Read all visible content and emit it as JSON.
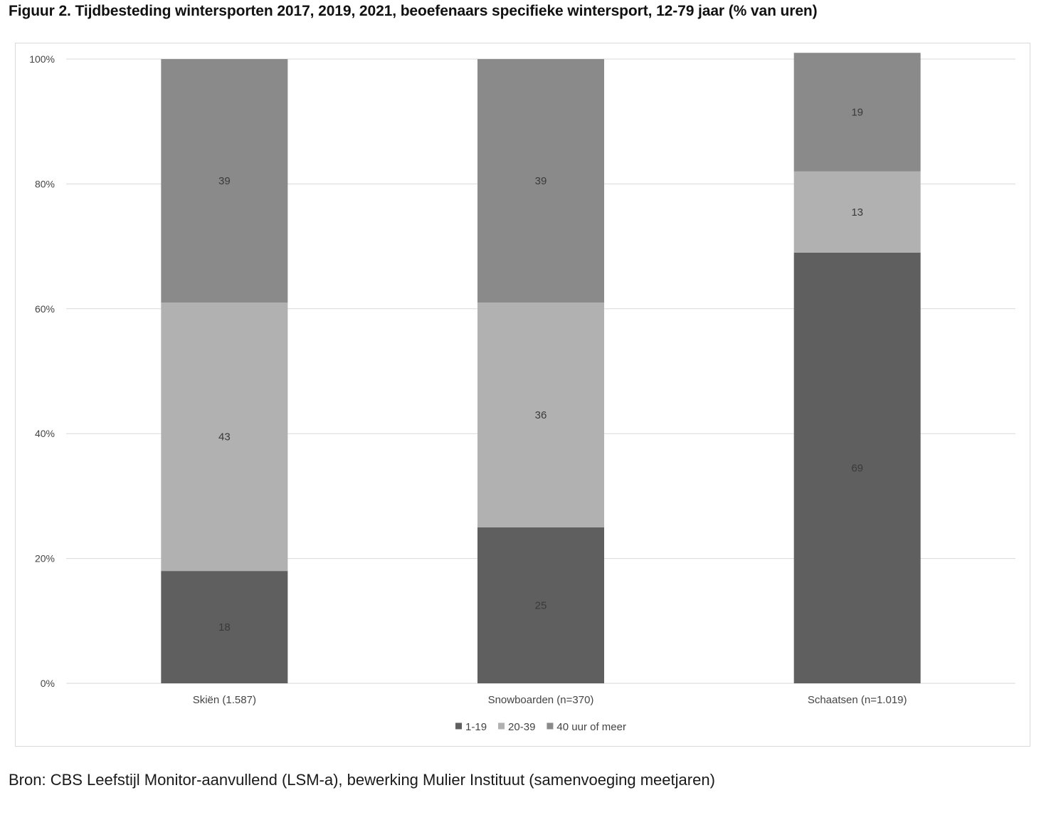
{
  "title": "Figuur 2. Tijdbesteding wintersporten 2017, 2019, 2021, beoefenaars specifieke wintersport, 12-79 jaar (% van uren)",
  "source": "Bron: CBS Leefstijl Monitor-aanvullend (LSM-a), bewerking Mulier Instituut (samenvoeging meetjaren)",
  "chart_data": {
    "type": "bar",
    "stacked": true,
    "categories": [
      "Skiën (1.587)",
      "Snowboarden (n=370)",
      "Schaatsen (n=1.019)"
    ],
    "series": [
      {
        "name": "1-19",
        "values": [
          18,
          25,
          69
        ],
        "color": "#5f5f5f"
      },
      {
        "name": "20-39",
        "values": [
          43,
          36,
          13
        ],
        "color": "#b1b1b1"
      },
      {
        "name": "40 uur of meer",
        "values": [
          39,
          39,
          19
        ],
        "color": "#8a8a8a"
      }
    ],
    "ylim": [
      0,
      100
    ],
    "yticks": [
      "0%",
      "20%",
      "40%",
      "60%",
      "80%",
      "100%"
    ],
    "grid": true,
    "legend": "bottom",
    "label_color": "#3a3a3a",
    "axis_text_color": "#444444",
    "grid_color": "#d9d9d9"
  }
}
